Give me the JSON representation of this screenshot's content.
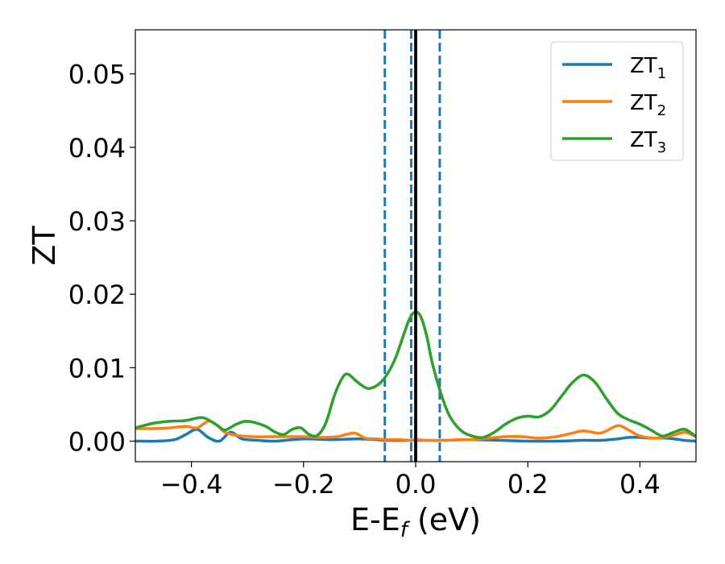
{
  "chart_data": {
    "type": "line",
    "xlabel": "E-E",
    "xlabel_sub": "f",
    "xlabel_unit": "(eV)",
    "ylabel": "ZT",
    "xlim": [
      -0.5,
      0.5
    ],
    "ylim": [
      -0.0028,
      0.056
    ],
    "xticks": [
      -0.4,
      -0.2,
      0.0,
      0.2,
      0.4
    ],
    "xtick_labels": [
      "−0.4",
      "−0.2",
      "0.0",
      "0.2",
      "0.4"
    ],
    "yticks": [
      0.0,
      0.01,
      0.02,
      0.03,
      0.04,
      0.05
    ],
    "ytick_labels": [
      "0.00",
      "0.01",
      "0.02",
      "0.03",
      "0.04",
      "0.05"
    ],
    "grid": false,
    "legend_position": "top-right",
    "vertical_lines": [
      {
        "x": -0.055,
        "style": "dashed",
        "color": "#1f77b4"
      },
      {
        "x": -0.008,
        "style": "dashed",
        "color": "#1f77b4"
      },
      {
        "x": 0.043,
        "style": "dashed",
        "color": "#1f77b4"
      },
      {
        "x": 0.0,
        "style": "solid",
        "color": "#000000"
      }
    ],
    "series": [
      {
        "name": "ZT",
        "name_sub": "1",
        "color": "#1f77b4",
        "x": [
          -0.5,
          -0.46,
          -0.43,
          -0.41,
          -0.39,
          -0.37,
          -0.35,
          -0.33,
          -0.31,
          -0.28,
          -0.25,
          -0.2,
          -0.15,
          -0.1,
          -0.05,
          0.0,
          0.05,
          0.1,
          0.15,
          0.2,
          0.25,
          0.3,
          0.33,
          0.36,
          0.38,
          0.4,
          0.42,
          0.45,
          0.48,
          0.5
        ],
        "y": [
          0.0,
          0.0,
          0.0002,
          0.0009,
          0.0016,
          0.0005,
          0.0,
          0.0012,
          0.0003,
          0.0001,
          0.0,
          0.0003,
          0.0002,
          0.0003,
          0.0001,
          0.0001,
          0.0001,
          0.0002,
          0.0001,
          0.0,
          0.0,
          0.0001,
          0.0001,
          0.0003,
          0.0005,
          0.0005,
          0.0004,
          0.0004,
          0.0001,
          0.0
        ]
      },
      {
        "name": "ZT",
        "name_sub": "2",
        "color": "#ff7f0e",
        "x": [
          -0.5,
          -0.47,
          -0.44,
          -0.41,
          -0.39,
          -0.37,
          -0.355,
          -0.34,
          -0.32,
          -0.29,
          -0.26,
          -0.23,
          -0.2,
          -0.17,
          -0.14,
          -0.11,
          -0.09,
          -0.07,
          -0.05,
          -0.03,
          -0.01,
          0.0,
          0.02,
          0.05,
          0.08,
          0.1,
          0.13,
          0.16,
          0.19,
          0.22,
          0.25,
          0.28,
          0.3,
          0.33,
          0.36,
          0.38,
          0.4,
          0.43,
          0.46,
          0.48,
          0.5
        ],
        "y": [
          0.0017,
          0.0017,
          0.0018,
          0.002,
          0.0018,
          0.0027,
          0.0022,
          0.0012,
          0.0008,
          0.0006,
          0.0006,
          0.0006,
          0.0006,
          0.0005,
          0.0006,
          0.0011,
          0.0004,
          0.0003,
          0.0002,
          0.0002,
          0.0001,
          0.0002,
          0.0001,
          0.0001,
          0.0002,
          0.0002,
          0.0004,
          0.0006,
          0.0006,
          0.0004,
          0.0006,
          0.0011,
          0.0014,
          0.0011,
          0.0021,
          0.0015,
          0.0007,
          0.0004,
          0.0008,
          0.0012,
          0.0006
        ]
      },
      {
        "name": "ZT",
        "name_sub": "3",
        "color": "#2ca02c",
        "x": [
          -0.5,
          -0.47,
          -0.44,
          -0.41,
          -0.38,
          -0.355,
          -0.34,
          -0.32,
          -0.3,
          -0.27,
          -0.25,
          -0.235,
          -0.22,
          -0.205,
          -0.19,
          -0.175,
          -0.16,
          -0.145,
          -0.13,
          -0.12,
          -0.105,
          -0.09,
          -0.08,
          -0.065,
          -0.05,
          -0.035,
          -0.02,
          -0.01,
          0.0,
          0.01,
          0.02,
          0.03,
          0.045,
          0.06,
          0.08,
          0.1,
          0.12,
          0.14,
          0.16,
          0.18,
          0.2,
          0.22,
          0.24,
          0.26,
          0.28,
          0.3,
          0.32,
          0.34,
          0.36,
          0.38,
          0.4,
          0.42,
          0.44,
          0.46,
          0.48,
          0.5
        ],
        "y": [
          0.0018,
          0.0024,
          0.0027,
          0.0028,
          0.0032,
          0.0022,
          0.0015,
          0.0023,
          0.0027,
          0.0021,
          0.0012,
          0.0009,
          0.0016,
          0.0018,
          0.0009,
          0.0008,
          0.0025,
          0.0062,
          0.0087,
          0.0091,
          0.0081,
          0.0073,
          0.0072,
          0.0078,
          0.0092,
          0.0115,
          0.0148,
          0.0168,
          0.0176,
          0.0168,
          0.0142,
          0.0105,
          0.0065,
          0.0035,
          0.0015,
          0.0007,
          0.0005,
          0.0012,
          0.0023,
          0.0031,
          0.0034,
          0.0033,
          0.0042,
          0.0061,
          0.008,
          0.009,
          0.008,
          0.0058,
          0.0038,
          0.0029,
          0.0023,
          0.0015,
          0.0007,
          0.0012,
          0.0016,
          0.0006
        ]
      }
    ]
  }
}
